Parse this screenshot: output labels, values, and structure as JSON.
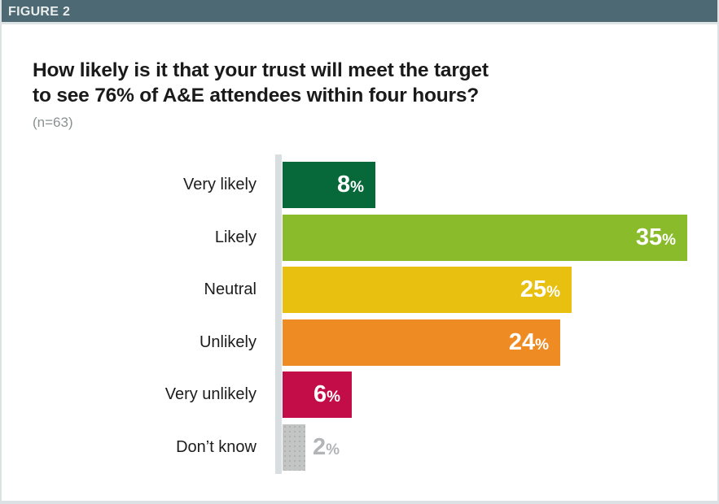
{
  "figure_label": "FIGURE 2",
  "title_lines": [
    "How likely is it that your trust will meet the target",
    "to see 76% of A&E attendees within four hours?"
  ],
  "sample_size": "(n=63)",
  "colors": {
    "header_band": "#4d6973",
    "axis_line": "#d9dee0",
    "title_text": "#1a1a1a",
    "sample_size_text": "#8b9192"
  },
  "chart_data": {
    "type": "bar",
    "orientation": "horizontal",
    "title": "How likely is it that your trust will meet the target to see 76% of A&E attendees within four hours?",
    "subtitle": "(n=63)",
    "unit": "%",
    "xlim": [
      0,
      35
    ],
    "grid": false,
    "legend": "none",
    "categories": [
      "Very likely",
      "Likely",
      "Neutral",
      "Unlikely",
      "Very unlikely",
      "Don’t know"
    ],
    "values": [
      8,
      35,
      25,
      24,
      6,
      2
    ],
    "bars": [
      {
        "label": "Very likely",
        "value": 8,
        "display": "8",
        "color": "#07693a",
        "value_color": "#ffffff",
        "value_position": "inside",
        "texture": "solid"
      },
      {
        "label": "Likely",
        "value": 35,
        "display": "35",
        "color": "#8abb2b",
        "value_color": "#ffffff",
        "value_position": "inside",
        "texture": "solid"
      },
      {
        "label": "Neutral",
        "value": 25,
        "display": "25",
        "color": "#e8c00f",
        "value_color": "#ffffff",
        "value_position": "inside",
        "texture": "solid"
      },
      {
        "label": "Unlikely",
        "value": 24,
        "display": "24",
        "color": "#ef8b23",
        "value_color": "#ffffff",
        "value_position": "inside",
        "texture": "solid"
      },
      {
        "label": "Very unlikely",
        "value": 6,
        "display": "6",
        "color": "#c20d49",
        "value_color": "#ffffff",
        "value_position": "inside",
        "texture": "solid"
      },
      {
        "label": "Don’t know",
        "value": 2,
        "display": "2",
        "color": "#c2c5c4",
        "value_color": "#b1b5b6",
        "value_position": "outside",
        "texture": "dotted"
      }
    ]
  }
}
